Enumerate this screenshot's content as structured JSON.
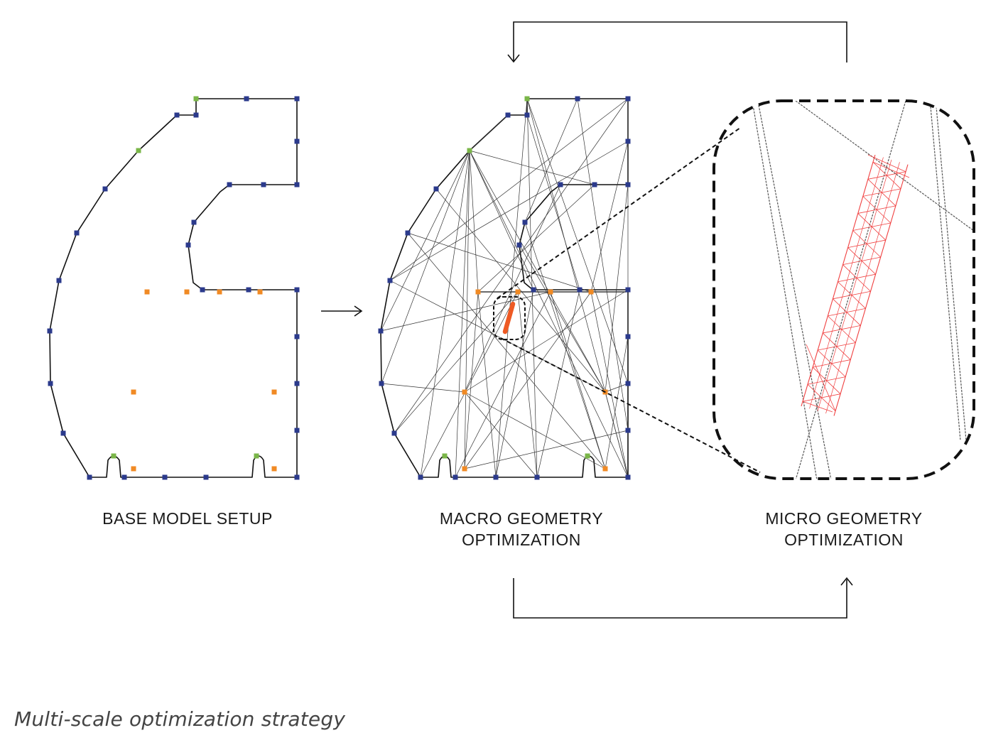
{
  "labels": {
    "base": "BASE MODEL SETUP",
    "macro_line1": "MACRO GEOMETRY",
    "macro_line2": "OPTIMIZATION",
    "micro_line1": "MICRO GEOMETRY",
    "micro_line2": "OPTIMIZATION"
  },
  "caption": "Multi-scale optimization strategy",
  "colors": {
    "outline": "#111111",
    "support_node": "#2b3a8c",
    "boundary_node": "#7ab648",
    "load_node": "#f08a24",
    "highlight_member": "#ee5a24",
    "lattice": "#f04040",
    "truss": "#333333"
  }
}
